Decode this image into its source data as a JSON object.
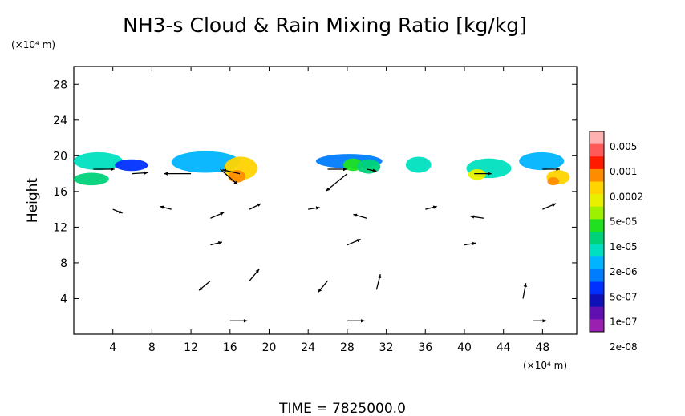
{
  "chart_data": {
    "type": "heatmap",
    "title": "NH3-s Cloud & Rain Mixing Ratio [kg/kg]",
    "ylabel": "Height",
    "x_unit_label": "(×10⁴ m)",
    "y_unit_label": "(×10⁴ m)",
    "footer": "TIME = 7825000.0",
    "xlim": [
      0,
      51.5
    ],
    "ylim": [
      0,
      30
    ],
    "x_ticks": [
      4,
      8,
      12,
      16,
      20,
      24,
      28,
      32,
      36,
      40,
      44,
      48
    ],
    "y_ticks": [
      4,
      8,
      12,
      16,
      20,
      24,
      28
    ],
    "x_tick_labels": [
      "4",
      "8",
      "12",
      "16",
      "20",
      "24",
      "28",
      "32",
      "36",
      "40",
      "44",
      "48"
    ],
    "y_tick_labels": [
      "4",
      "8",
      "12",
      "16",
      "20",
      "24",
      "28"
    ],
    "colorbar": {
      "labels": [
        "0.005",
        "0.001",
        "0.0002",
        "5e-05",
        "1e-05",
        "2e-06",
        "5e-07",
        "1e-07",
        "2e-08"
      ],
      "colors": [
        "#ffb0b0",
        "#ff5a5a",
        "#ff1a00",
        "#ff8c00",
        "#ffd400",
        "#e8f000",
        "#9cf000",
        "#20e020",
        "#00d27a",
        "#00e0c0",
        "#00b4ff",
        "#007cff",
        "#0030ff",
        "#1010b8",
        "#6010b0",
        "#9a20b0"
      ]
    },
    "cloud_patches": [
      {
        "x": 0.0,
        "y": 18.4,
        "w": 5.0,
        "h": 2.0,
        "level": 9
      },
      {
        "x": 0.0,
        "y": 16.7,
        "w": 3.6,
        "h": 1.4,
        "level": 8
      },
      {
        "x": 4.2,
        "y": 18.3,
        "w": 3.4,
        "h": 1.3,
        "level": 12
      },
      {
        "x": 10.0,
        "y": 18.1,
        "w": 7.0,
        "h": 2.4,
        "level": 10
      },
      {
        "x": 15.4,
        "y": 17.3,
        "w": 3.4,
        "h": 2.6,
        "level": 4
      },
      {
        "x": 15.8,
        "y": 17.0,
        "w": 1.8,
        "h": 1.4,
        "level": 3
      },
      {
        "x": 24.8,
        "y": 18.6,
        "w": 6.8,
        "h": 1.6,
        "level": 11
      },
      {
        "x": 27.6,
        "y": 18.3,
        "w": 2.0,
        "h": 1.4,
        "level": 7
      },
      {
        "x": 29.0,
        "y": 18.0,
        "w": 2.4,
        "h": 1.6,
        "level": 8
      },
      {
        "x": 34.0,
        "y": 18.1,
        "w": 2.6,
        "h": 1.8,
        "level": 9
      },
      {
        "x": 40.2,
        "y": 17.5,
        "w": 4.6,
        "h": 2.2,
        "level": 9
      },
      {
        "x": 40.4,
        "y": 17.3,
        "w": 1.8,
        "h": 1.2,
        "level": 5
      },
      {
        "x": 45.6,
        "y": 18.4,
        "w": 4.6,
        "h": 2.0,
        "level": 10
      },
      {
        "x": 48.4,
        "y": 16.8,
        "w": 2.4,
        "h": 1.6,
        "level": 4
      },
      {
        "x": 48.5,
        "y": 16.7,
        "w": 1.2,
        "h": 0.9,
        "level": 3
      }
    ],
    "wind_vectors": [
      {
        "x": 2,
        "y": 18.5,
        "u": 2.2,
        "v": 0.0
      },
      {
        "x": 6,
        "y": 18.0,
        "u": 1.6,
        "v": 0.1
      },
      {
        "x": 12,
        "y": 18.0,
        "u": -2.8,
        "v": 0.0
      },
      {
        "x": 15,
        "y": 18.5,
        "u": 1.8,
        "v": -1.6
      },
      {
        "x": 17,
        "y": 18.0,
        "u": -1.8,
        "v": 0.4
      },
      {
        "x": 26,
        "y": 18.5,
        "u": 2.0,
        "v": 0.0
      },
      {
        "x": 28,
        "y": 18.0,
        "u": -2.2,
        "v": -1.8
      },
      {
        "x": 30,
        "y": 18.5,
        "u": 1.0,
        "v": -0.2
      },
      {
        "x": 41,
        "y": 18.0,
        "u": 1.8,
        "v": 0.0
      },
      {
        "x": 48,
        "y": 18.5,
        "u": 1.8,
        "v": 0.0
      },
      {
        "x": 4,
        "y": 14.0,
        "u": 1.0,
        "v": -0.4
      },
      {
        "x": 10,
        "y": 14.0,
        "u": -1.2,
        "v": 0.3
      },
      {
        "x": 14,
        "y": 13.0,
        "u": 1.4,
        "v": 0.6
      },
      {
        "x": 18,
        "y": 14.0,
        "u": 1.2,
        "v": 0.6
      },
      {
        "x": 24,
        "y": 14.0,
        "u": 1.2,
        "v": 0.2
      },
      {
        "x": 30,
        "y": 13.0,
        "u": -1.4,
        "v": 0.4
      },
      {
        "x": 36,
        "y": 14.0,
        "u": 1.2,
        "v": 0.3
      },
      {
        "x": 42,
        "y": 13.0,
        "u": -1.4,
        "v": 0.2
      },
      {
        "x": 48,
        "y": 14.0,
        "u": 1.4,
        "v": 0.6
      },
      {
        "x": 14,
        "y": 10.0,
        "u": 1.2,
        "v": 0.3
      },
      {
        "x": 28,
        "y": 10.0,
        "u": 1.4,
        "v": 0.6
      },
      {
        "x": 40,
        "y": 10.0,
        "u": 1.2,
        "v": 0.2
      },
      {
        "x": 14,
        "y": 6.0,
        "u": -1.2,
        "v": -1.0
      },
      {
        "x": 18,
        "y": 6.0,
        "u": 1.0,
        "v": 1.2
      },
      {
        "x": 26,
        "y": 6.0,
        "u": -1.0,
        "v": -1.2
      },
      {
        "x": 31,
        "y": 5.0,
        "u": 0.4,
        "v": 1.6
      },
      {
        "x": 46,
        "y": 4.0,
        "u": 0.3,
        "v": 1.6
      },
      {
        "x": 16,
        "y": 1.5,
        "u": 1.8,
        "v": 0.0
      },
      {
        "x": 28,
        "y": 1.5,
        "u": 1.8,
        "v": 0.0
      },
      {
        "x": 47,
        "y": 1.5,
        "u": 1.4,
        "v": 0.0
      }
    ]
  }
}
